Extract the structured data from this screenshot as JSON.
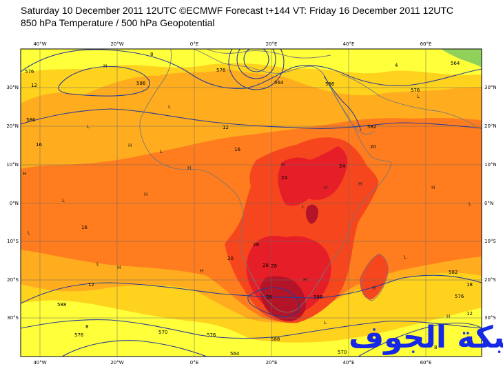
{
  "header": {
    "line1": "Saturday 10 December 2011 12UTC ©ECMWF Forecast t+144 VT: Friday 16 December 2011 12UTC",
    "line2": "850 hPa Temperature / 500 hPa Geopotential"
  },
  "map": {
    "lon_labels_top": [
      "40°W",
      "20°W",
      "0°E",
      "20°E",
      "40°E",
      "60°E"
    ],
    "lon_labels_bottom": [
      "40°W",
      "20°W",
      "0°E",
      "20°E",
      "40°E",
      "60°E"
    ],
    "lat_labels_left": [
      "30°N",
      "20°N",
      "10°N",
      "0°N",
      "10°S",
      "20°S",
      "30°S"
    ],
    "lat_labels_right": [
      "30°N",
      "20°N",
      "10°N",
      "0°N",
      "10°S",
      "20°S",
      "30°S"
    ],
    "temperature_labels": [
      "8",
      "4",
      "12",
      "12",
      "16",
      "16",
      "20",
      "24",
      "24",
      "16",
      "28",
      "28",
      "28",
      "28",
      "12",
      "20",
      "12",
      "8",
      "8",
      "18"
    ],
    "geopotential_labels": [
      "576",
      "586",
      "576",
      "586",
      "576",
      "564",
      "582",
      "586",
      "588",
      "576",
      "570",
      "576",
      "564",
      "564",
      "570",
      "576",
      "582",
      "588",
      "588"
    ],
    "pressure_markers": [
      "H",
      "L"
    ],
    "colors": {
      "cold_green": "#8fd15a",
      "pale_yellow": "#ffff3a",
      "yellow": "#ffd21e",
      "light_orange": "#ffad1e",
      "orange": "#ff7d1e",
      "red_orange": "#f5461e",
      "red": "#e61e28",
      "dark_red": "#b41428",
      "contour_blue": "#283c96",
      "coast_gray": "#787878",
      "watermark_blue": "#1428e6"
    }
  },
  "watermark": {
    "text": "شبكة الجوف"
  }
}
